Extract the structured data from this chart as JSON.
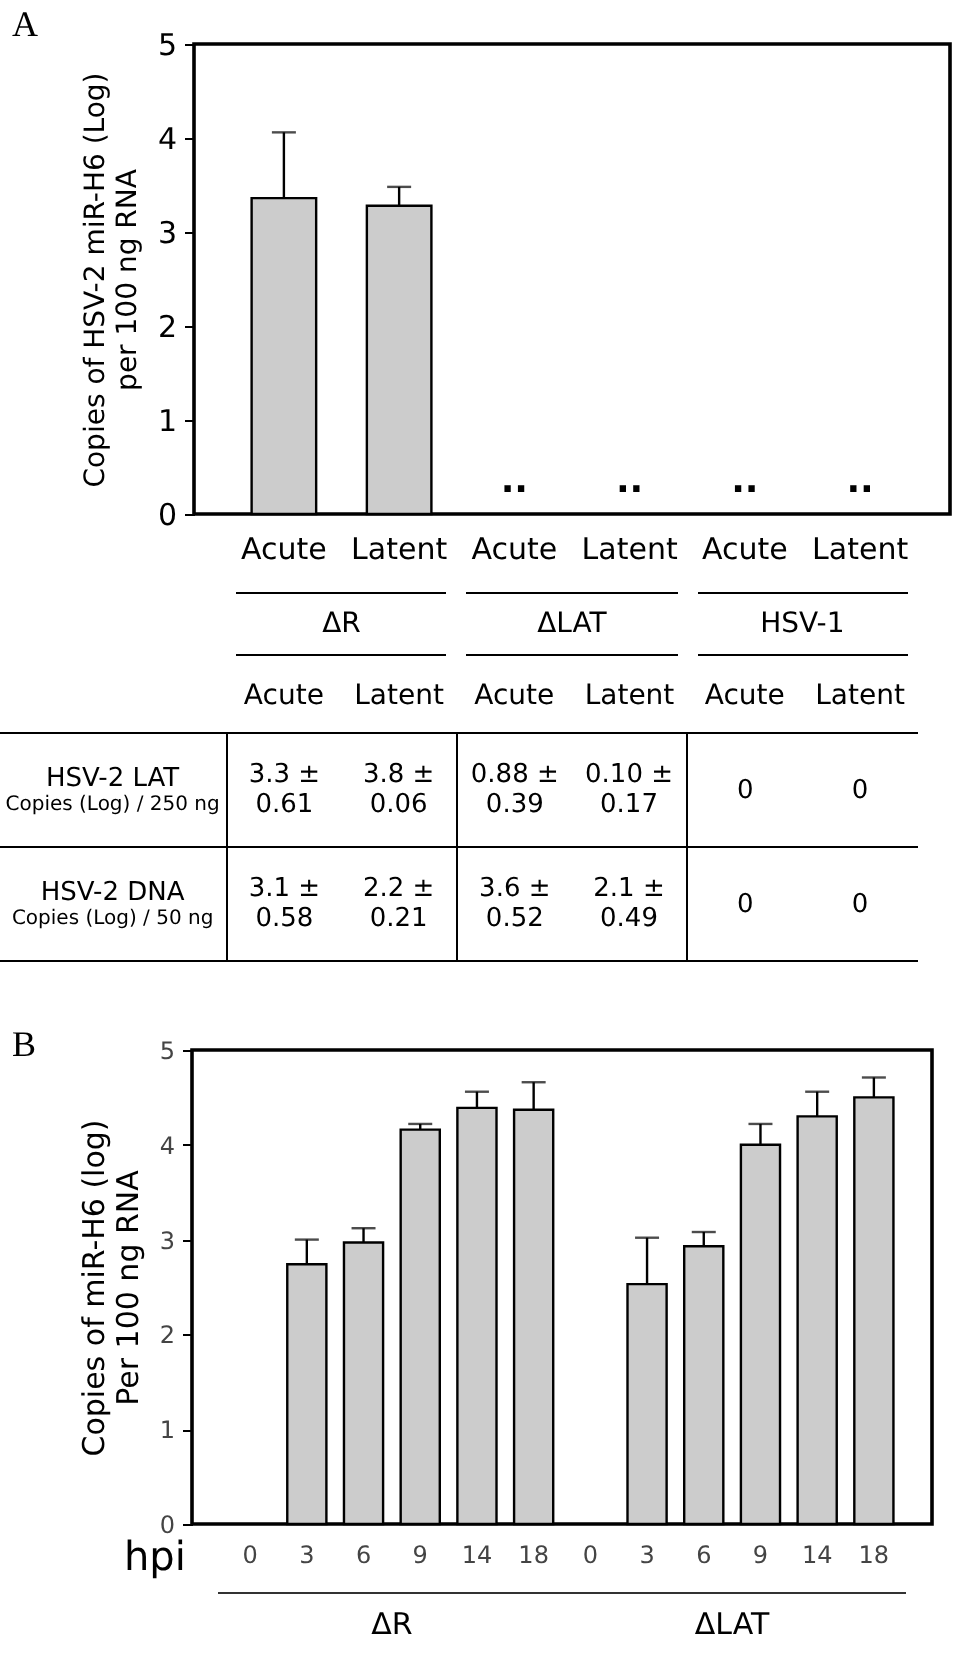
{
  "chart_data": [
    {
      "type": "bar",
      "title": "A",
      "ylabel": "Copies of HSV-2 miR-H6 (Log)\nper 100  ng RNA",
      "categories": [
        "Acute",
        "Latent",
        "Acute",
        "Latent",
        "Acute",
        "Latent"
      ],
      "values": [
        3.36,
        3.28,
        null,
        null,
        null,
        null
      ],
      "errors": [
        0.7,
        0.2,
        null,
        null,
        null,
        null
      ],
      "value_labels": [
        null,
        null,
        "..",
        "..",
        "..",
        ".."
      ],
      "color": "#cccccc",
      "ylim": [
        0,
        5
      ],
      "yticks": [
        0,
        1,
        2,
        3,
        4,
        5
      ],
      "grid": false
    },
    {
      "type": "other",
      "annotations": [
        "ΔR",
        "ΔLAT",
        "HSV-1"
      ],
      "categories": [
        "Acute",
        "Latent",
        "Acute",
        "Latent",
        "Acute",
        "Latent"
      ],
      "y_categories": [
        "HSV-2 LAT\nCopies (Log) / 250 ng",
        "HSV-2 DNA\nCopies (Log) / 50 ng"
      ],
      "cell_labels": [
        [
          "3.3 ±\n0.61",
          "3.8 ±\n0.06",
          "0.88 ±\n0.39",
          "0.10 ±\n0.17",
          "0",
          "0"
        ],
        [
          "3.1 ±\n0.58",
          "2.2 ±\n0.21",
          "3.6 ±\n0.52",
          "2.1 ±\n0.49",
          "0",
          "0"
        ]
      ]
    },
    {
      "type": "bar",
      "title": "B",
      "xlabel": "hpi",
      "ylabel": "Copies of miR-H6 (log)\nPer 100 ng RNA",
      "categories": [
        "0",
        "3",
        "6",
        "9",
        "14",
        "18",
        "0",
        "3",
        "6",
        "9",
        "14",
        "18"
      ],
      "values": [
        null,
        2.74,
        2.97,
        4.16,
        4.39,
        4.37,
        null,
        2.53,
        2.93,
        4.0,
        4.3,
        4.5
      ],
      "errors": [
        null,
        0.26,
        0.15,
        0.06,
        0.17,
        0.29,
        null,
        0.49,
        0.15,
        0.22,
        0.26,
        0.21
      ],
      "color": "#cccccc",
      "ylim": [
        0,
        5
      ],
      "yticks": [
        0,
        1,
        2,
        3,
        4,
        5
      ],
      "grid": false,
      "annotations": [
        "ΔR",
        "ΔLAT"
      ]
    }
  ]
}
